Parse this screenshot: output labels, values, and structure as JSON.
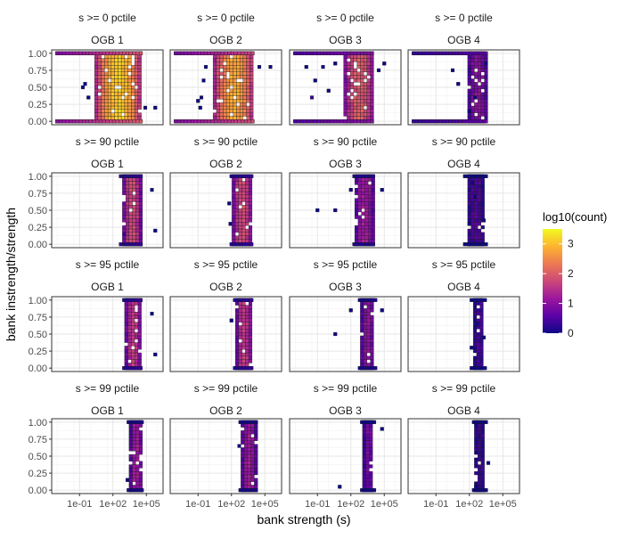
{
  "chart_data": {
    "type": "heatmap",
    "xlabel": "bank strength (s)",
    "ylabel": "bank instrength/strength",
    "x_scale": "log10",
    "xlim": [
      -3.5,
      6.5
    ],
    "ylim": [
      -0.05,
      1.05
    ],
    "x_ticks": [
      {
        "value": -1,
        "label": "1e-01"
      },
      {
        "value": 2,
        "label": "1e+02"
      },
      {
        "value": 5,
        "label": "1e+05"
      }
    ],
    "y_ticks": [
      {
        "value": 0.0,
        "label": "0.00"
      },
      {
        "value": 0.25,
        "label": "0.25"
      },
      {
        "value": 0.5,
        "label": "0.50"
      },
      {
        "value": 0.75,
        "label": "0.75"
      },
      {
        "value": 1.0,
        "label": "1.00"
      }
    ],
    "legend": {
      "title": "log10(count)",
      "position": "right",
      "ticks": [
        0,
        1,
        2,
        3
      ],
      "range": [
        0,
        3.5
      ],
      "colors": [
        "#0d0887",
        "#5c01a6",
        "#9c179e",
        "#cc4778",
        "#ed7953",
        "#fdb42f",
        "#f0f921"
      ]
    },
    "strip_bg": "#ffffff",
    "y_bins": 21,
    "row_labels": [
      "s >= 0 pctile",
      "s >= 90 pctile",
      "s >= 95 pctile",
      "s >= 99 pctile"
    ],
    "col_labels": [
      "OGB 1",
      "OGB 2",
      "OGB 3",
      "OGB 4"
    ],
    "panels": [
      [
        {
          "band": [
            0.5,
            4.5
          ],
          "peak": 3.1,
          "edge": [
            [
              -3,
              0.4,
              2.2
            ],
            [
              -3,
              0.6,
              2.0
            ]
          ],
          "scatter": [
            [
              -0.5,
              0.55,
              0.0
            ],
            [
              -0.7,
              0.5,
              0.0
            ],
            [
              4.9,
              0.2,
              0.0
            ],
            [
              5.8,
              0.2,
              0.0
            ],
            [
              -0.2,
              0.35,
              0.0
            ]
          ]
        },
        {
          "band": [
            0.5,
            4.0
          ],
          "peak": 2.8,
          "edge": [
            [
              -3,
              0.4,
              2.0
            ],
            [
              -3,
              0.6,
              1.8
            ]
          ],
          "scatter": [
            [
              -0.5,
              0.6,
              0.0
            ],
            [
              -0.7,
              0.35,
              0.0
            ],
            [
              -1.0,
              0.3,
              0.0
            ],
            [
              -0.3,
              0.8,
              0.0
            ],
            [
              4.5,
              0.8,
              0.0
            ],
            [
              5.5,
              0.8,
              0.0
            ],
            [
              -0.8,
              0.2,
              0.0
            ]
          ]
        },
        {
          "band": [
            1.5,
            4.0
          ],
          "peak": 2.0,
          "edge": [
            [
              -3,
              0.4,
              1.2
            ],
            [
              -3,
              0.6,
              1.0
            ]
          ],
          "scatter": [
            [
              -1.5,
              0.35,
              0.3
            ],
            [
              -1.2,
              0.6,
              0.0
            ],
            [
              0.0,
              0.45,
              0.0
            ],
            [
              -0.5,
              0.8,
              0.0
            ],
            [
              0.6,
              0.85,
              0.0
            ],
            [
              4.5,
              0.75,
              0.0
            ],
            [
              5.0,
              0.85,
              0.0
            ],
            [
              -2.0,
              0.8,
              0.0
            ]
          ]
        },
        {
          "band": [
            2.0,
            3.5
          ],
          "peak": 1.0,
          "edge": [
            [
              -3,
              0.4,
              0.8
            ],
            [
              -3,
              0.6,
              0.6
            ]
          ],
          "scatter": [
            [
              1.0,
              0.55,
              0.0
            ],
            [
              2.5,
              0.35,
              0.0
            ],
            [
              0.5,
              0.75,
              0.0
            ],
            [
              3.5,
              0.85,
              0.0
            ],
            [
              2.0,
              0.15,
              0.0
            ]
          ]
        }
      ],
      [
        {
          "band": [
            3.0,
            4.5
          ],
          "peak": 1.8,
          "edge": [
            [
              2.7,
              0.5,
              0.5
            ],
            [
              4.6,
              0.6,
              0.3
            ]
          ],
          "scatter": [
            [
              5.8,
              0.2,
              0.0
            ],
            [
              5.5,
              0.8,
              0.0
            ],
            [
              3.0,
              0.15,
              0.3
            ]
          ]
        },
        {
          "band": [
            2.2,
            3.8
          ],
          "peak": 1.8,
          "edge": [
            [
              2.0,
              0.5,
              0.4
            ],
            [
              3.9,
              0.5,
              0.3
            ]
          ],
          "scatter": [
            [
              1.9,
              0.3,
              0.0
            ],
            [
              1.8,
              0.6,
              0.0
            ]
          ]
        },
        {
          "band": [
            2.5,
            4.0
          ],
          "peak": 1.2,
          "edge": [
            [
              2.3,
              0.5,
              0.2
            ],
            [
              4.1,
              0.5,
              0.2
            ]
          ],
          "scatter": [
            [
              -1.0,
              0.5,
              0.0
            ],
            [
              0.6,
              0.5,
              0.0
            ],
            [
              2.0,
              0.8,
              0.0
            ],
            [
              4.8,
              0.8,
              0.0
            ]
          ]
        },
        {
          "band": [
            2.0,
            3.2
          ],
          "peak": 0.5,
          "edge": [
            [
              1.6,
              0.5,
              0.0
            ],
            [
              3.6,
              0.5,
              0.0
            ]
          ],
          "scatter": [
            [
              2.5,
              0.7,
              0.0
            ],
            [
              2.0,
              0.3,
              0.0
            ],
            [
              3.3,
              0.35,
              0.0
            ],
            [
              2.3,
              0.9,
              0.0
            ]
          ]
        }
      ],
      [
        {
          "band": [
            3.2,
            4.5
          ],
          "peak": 1.6,
          "edge": [
            [
              3.0,
              0.5,
              0.4
            ],
            [
              4.6,
              0.5,
              0.3
            ]
          ],
          "scatter": [
            [
              5.8,
              0.2,
              0.0
            ],
            [
              5.5,
              0.8,
              0.0
            ]
          ]
        },
        {
          "band": [
            2.5,
            3.8
          ],
          "peak": 1.6,
          "edge": [
            [
              2.3,
              0.5,
              0.3
            ],
            [
              3.9,
              0.5,
              0.3
            ]
          ],
          "scatter": [
            [
              2.0,
              0.7,
              0.0
            ]
          ]
        },
        {
          "band": [
            3.0,
            4.0
          ],
          "peak": 1.1,
          "edge": [
            [
              2.8,
              0.5,
              0.1
            ],
            [
              4.2,
              0.5,
              0.1
            ]
          ],
          "scatter": [
            [
              0.6,
              0.5,
              0.0
            ],
            [
              2.0,
              0.85,
              0.0
            ],
            [
              4.8,
              0.85,
              0.0
            ]
          ]
        },
        {
          "band": [
            2.5,
            3.3
          ],
          "peak": 0.4,
          "edge": [
            [
              2.2,
              0.5,
              0.0
            ],
            [
              3.6,
              0.5,
              0.0
            ]
          ],
          "scatter": [
            [
              2.7,
              0.65,
              0.0
            ],
            [
              2.2,
              0.3,
              0.0
            ],
            [
              3.3,
              0.45,
              0.0
            ]
          ]
        }
      ],
      [
        {
          "band": [
            3.6,
            4.6
          ],
          "peak": 1.2,
          "edge": [
            [
              3.4,
              0.5,
              0.2
            ],
            [
              4.7,
              0.5,
              0.1
            ]
          ],
          "scatter": [
            [
              3.3,
              0.15,
              0.0
            ]
          ]
        },
        {
          "band": [
            3.0,
            4.2
          ],
          "peak": 1.2,
          "edge": [
            [
              2.8,
              0.5,
              0.1
            ],
            [
              4.3,
              0.5,
              0.1
            ]
          ],
          "scatter": [
            [
              2.7,
              0.65,
              0.0
            ]
          ]
        },
        {
          "band": [
            3.2,
            4.0
          ],
          "peak": 0.8,
          "edge": [
            [
              3.0,
              0.5,
              0.0
            ],
            [
              4.2,
              0.5,
              0.0
            ]
          ],
          "scatter": [
            [
              1.0,
              0.05,
              0.0
            ],
            [
              4.8,
              0.9,
              0.0
            ]
          ]
        },
        {
          "band": [
            2.6,
            3.4
          ],
          "peak": 0.3,
          "edge": [
            [
              2.4,
              0.5,
              0.0
            ],
            [
              3.6,
              0.5,
              0.0
            ]
          ],
          "scatter": [
            [
              3.7,
              0.4,
              0.0
            ],
            [
              2.6,
              0.05,
              0.0
            ]
          ]
        }
      ]
    ]
  }
}
